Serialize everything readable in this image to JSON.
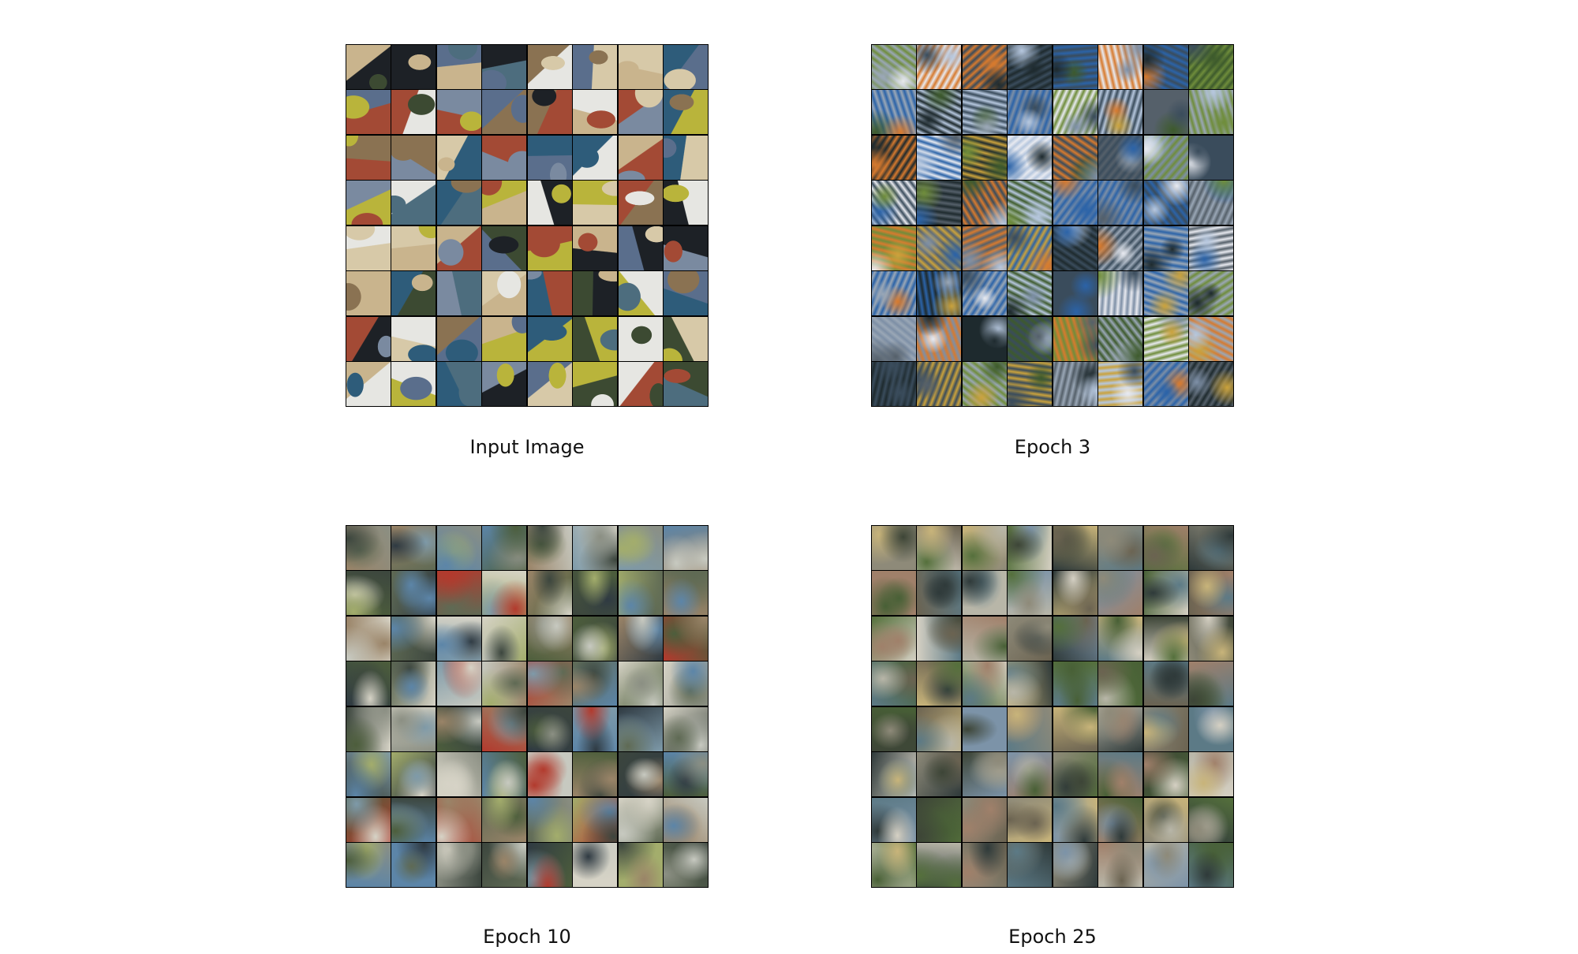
{
  "panels": [
    {
      "id": "input",
      "caption": "Input Image",
      "seed": 11,
      "style": "sharp",
      "palette": [
        "#5a6e8c",
        "#8a7252",
        "#3c4a32",
        "#c9b48d",
        "#1d2126",
        "#e6e6e2",
        "#7a8aa0",
        "#a34a35",
        "#d7c9a8",
        "#4d6d7e",
        "#b9b43b",
        "#2e5c7a"
      ]
    },
    {
      "id": "epoch-3",
      "caption": "Epoch 3",
      "seed": 23,
      "style": "noisy",
      "palette": [
        "#3a4c5c",
        "#7d8fa6",
        "#e8eaf0",
        "#1e2a2e",
        "#6f8d3b",
        "#d77a2e",
        "#9aa7b6",
        "#2b63a8",
        "#caa23c",
        "#55606a",
        "#b6c7de",
        "#3d5a2c"
      ]
    },
    {
      "id": "epoch-10",
      "caption": "Epoch 10",
      "seed": 37,
      "style": "blurry",
      "palette": [
        "#5f6a54",
        "#8b8f83",
        "#c7c9c0",
        "#3c463e",
        "#a3ad6c",
        "#5c85a8",
        "#b23a2d",
        "#9a8468",
        "#2f3a42",
        "#7e9aa9",
        "#d6d3c6",
        "#4d5e3c"
      ]
    },
    {
      "id": "epoch-25",
      "caption": "Epoch 25",
      "seed": 53,
      "style": "blurry",
      "palette": [
        "#6b6351",
        "#8e8a79",
        "#b8b6a8",
        "#3d4537",
        "#55703c",
        "#7c93a8",
        "#a0806a",
        "#c8b47a",
        "#2f3a3a",
        "#5c7a86",
        "#d5d0c3",
        "#486036"
      ]
    }
  ]
}
